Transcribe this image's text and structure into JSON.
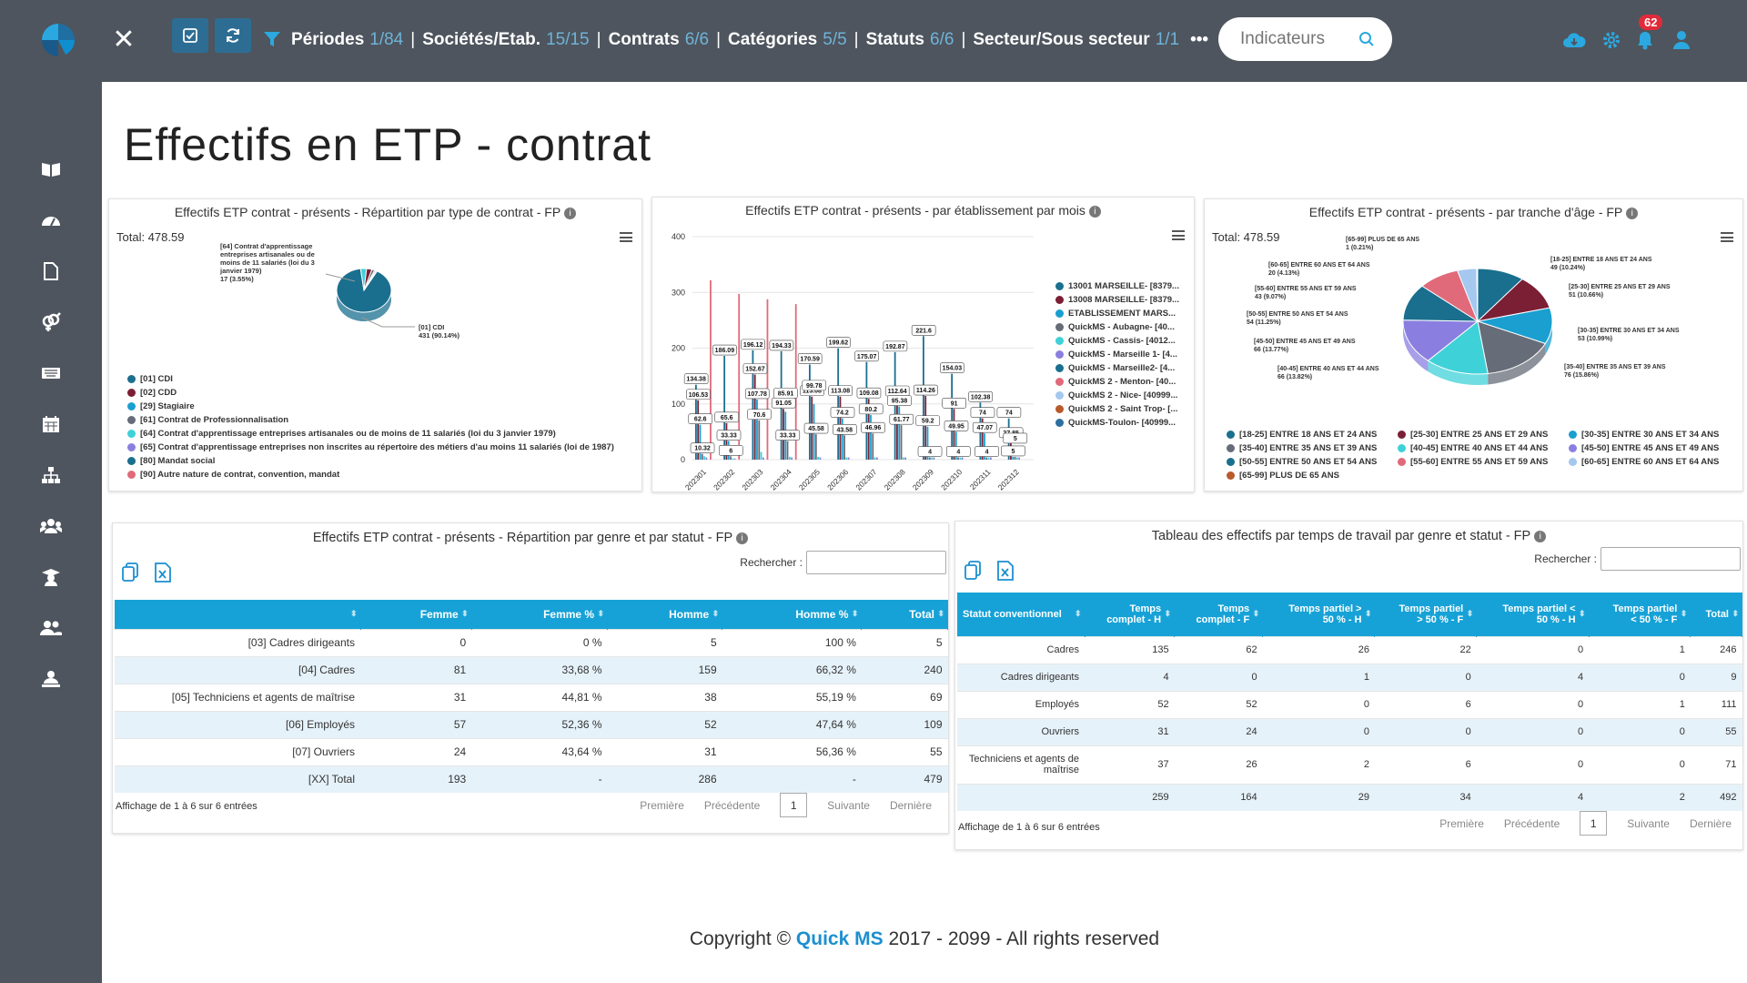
{
  "topbar": {
    "filters": [
      {
        "label": "Périodes",
        "count": "1/84"
      },
      {
        "label": "Sociétés/Etab.",
        "count": "15/15"
      },
      {
        "label": "Contrats",
        "count": "6/6"
      },
      {
        "label": "Catégories",
        "count": "5/5"
      },
      {
        "label": "Statuts",
        "count": "6/6"
      },
      {
        "label": "Secteur/Sous secteur",
        "count": "1/1"
      }
    ],
    "more": "•••",
    "search_placeholder": "Indicateurs",
    "notifications": "62"
  },
  "page_title": "Effectifs en ETP - contrat",
  "pie1": {
    "title": "Effectifs ETP contrat - présents - Répartition par type de contrat - FP",
    "total": "Total: 478.59",
    "labels": {
      "apprentissage": [
        "[64] Contrat d'apprentissage",
        "entreprises artisanales ou de",
        "moins de 11 salariés (loi du 3",
        "janvier 1979)",
        "17 (3.55%)"
      ],
      "cdi": [
        "[01] CDI",
        "431 (90.14%)"
      ]
    },
    "legend": [
      {
        "label": "[01] CDI",
        "color": "#1a6f8f"
      },
      {
        "label": "[02] CDD",
        "color": "#7b1f35"
      },
      {
        "label": "[29] Stagiaire",
        "color": "#1a9fd0"
      },
      {
        "label": "[61] Contrat de Professionnalisation",
        "color": "#666c78"
      },
      {
        "label": "[64] Contrat d'apprentissage entreprises artisanales ou de moins de 11 salariés (loi du 3 janvier 1979)",
        "color": "#3fd1d8"
      },
      {
        "label": "[65] Contrat d'apprentissage entreprises non inscrites au répertoire des métiers d'au moins 11 salariés (loi de 1987)",
        "color": "#8a7fe0"
      },
      {
        "label": "[80] Mandat social",
        "color": "#1a6f8f"
      },
      {
        "label": "[90] Autre nature de contrat, convention, mandat",
        "color": "#e06a7a"
      }
    ]
  },
  "chart_data": [
    {
      "type": "pie",
      "title": "Effectifs ETP contrat - présents - Répartition par type de contrat - FP",
      "slices": [
        {
          "label": "[01] CDI",
          "value": 431,
          "percent": 90.14,
          "color": "#1a6f8f"
        },
        {
          "label": "[64] Contrat d'apprentissage entreprises artisanales ou de moins de 11 salariés (loi du 3 janvier 1979)",
          "value": 17,
          "percent": 3.55,
          "color": "#3fd1d8"
        },
        {
          "label": "[02] CDD",
          "value": 15.2,
          "color": "#7b1f35"
        },
        {
          "label": "[61] Contrat de Professionnalisation",
          "value": 8,
          "color": "#666c78"
        },
        {
          "label": "[65]",
          "value": 4,
          "color": "#8a7fe0"
        },
        {
          "label": "[90]",
          "value": 3.39,
          "color": "#e06a7a"
        }
      ],
      "total": "Total: 478.59"
    },
    {
      "type": "bar",
      "title": "Effectifs ETP contrat - présents - par établissement par mois",
      "categories": [
        "202301",
        "202302",
        "202303",
        "202304",
        "202305",
        "202306",
        "202307",
        "202308",
        "202309",
        "202310",
        "202311",
        "202312"
      ],
      "ylim": [
        0,
        400
      ],
      "yticks": [
        0,
        100,
        200,
        300,
        400
      ],
      "series": [
        {
          "name": "13001 MARSEILLE- [8379...",
          "color": "#1a6f8f",
          "values": [
            134.38,
            186.09,
            196.12,
            194.33,
            170.59,
            199.62,
            175.07,
            192.87,
            221.6,
            154.03,
            102.38,
            74
          ]
        },
        {
          "name": "13008 MARSEILLE- [8379...",
          "color": "#7b1f35",
          "values": [
            106.53,
            65.6,
            152.67,
            91.05,
            113.08,
            113.08,
            109.08,
            112.64,
            114.26,
            91.0,
            74,
            37.85
          ]
        },
        {
          "name": "ETABLISSEMENT MARS...",
          "color": "#1a9fd0",
          "values": [
            62.6,
            33.33,
            107.78,
            85.91,
            99.78,
            74.2,
            80.2,
            95.38,
            59.2,
            49.95,
            47.07,
            5
          ]
        },
        {
          "name": "QuickMS - Aubagne- [40...",
          "color": "#666c78",
          "values": [
            10.32,
            6,
            70.6,
            33.33,
            45.58,
            43.58,
            46.96,
            61.77,
            4,
            4,
            4,
            5
          ]
        },
        {
          "name": "QuickMS - Cassis- [4012...",
          "color": "#3fd1d8",
          "values": [
            6,
            2,
            13.8,
            5,
            5,
            4,
            4,
            4,
            4,
            4,
            4,
            4
          ]
        },
        {
          "name": "QuickMS - Marseille 1- [4...",
          "color": "#8a7fe0",
          "values": [
            4,
            2,
            4,
            4,
            4,
            4,
            4,
            4,
            4,
            4,
            4,
            4
          ]
        },
        {
          "name": "QuickMS - Marseille2- [4...",
          "color": "#1a6f8f",
          "values": [
            0,
            0,
            0,
            0,
            0,
            0,
            0,
            0,
            0,
            0,
            0,
            0
          ]
        },
        {
          "name": "QuickMS 2 - Menton- [40...",
          "color": "#e06a7a",
          "values": [
            321.73,
            297.23,
            287.68,
            279.02,
            0,
            0,
            0,
            0,
            0,
            0,
            0,
            0
          ]
        },
        {
          "name": "QuickMS 2 - Nice- [40999...",
          "color": "#a5c8f0",
          "values": [
            0,
            0,
            0,
            0,
            0,
            0,
            0,
            0,
            0,
            0,
            0,
            0
          ]
        },
        {
          "name": "QuickMS 2 - Saint Trop- [...",
          "color": "#b85a2a",
          "values": [
            0,
            0,
            0,
            0,
            0,
            0,
            0,
            0,
            0,
            0,
            0,
            0
          ]
        },
        {
          "name": "QuickMS-Toulon- [40999...",
          "color": "#2c6fa0",
          "values": [
            0,
            0,
            0,
            0,
            0,
            0,
            0,
            0,
            0,
            0,
            0,
            0
          ]
        }
      ],
      "data_labels": [
        "321.73",
        "297.23",
        "287.68",
        "279.02",
        "186.09",
        "196.12",
        "194.33",
        "199.62",
        "175.07",
        "192.87",
        "221.60",
        "154.03",
        "134.38",
        "152.67",
        "170.59",
        "113.08",
        "109.08",
        "112.64",
        "114.26",
        "102.38",
        "106.53",
        "107.78",
        "85.91",
        "99.78",
        "74.20",
        "80.20",
        "95.38",
        "59.20",
        "74",
        "62.60",
        "65.60",
        "70.60",
        "43.58",
        "45.58",
        "46.96",
        "61.77",
        "49.95",
        "47.07",
        "37.85",
        "10.32",
        "33.33",
        "33.33",
        "13.80",
        "6",
        "2",
        "5",
        "4",
        "5"
      ]
    },
    {
      "type": "pie",
      "title": "Effectifs ETP contrat - présents - par tranche d'âge - FP",
      "total": "Total: 478.59",
      "slices": [
        {
          "label": "[18-25] ENTRE 18 ANS ET 24 ANS",
          "value": 49,
          "percent": 10.24,
          "color": "#1a6f8f"
        },
        {
          "label": "[25-30] ENTRE 25 ANS ET 29 ANS",
          "value": 51,
          "percent": 10.66,
          "color": "#7b1f35"
        },
        {
          "label": "[30-35] ENTRE 30 ANS ET 34 ANS",
          "value": 53,
          "percent": 10.99,
          "color": "#1a9fd0"
        },
        {
          "label": "[35-40] ENTRE 35 ANS ET 39 ANS",
          "value": 76,
          "percent": 15.86,
          "color": "#666c78"
        },
        {
          "label": "[40-45] ENTRE 40 ANS ET 44 ANS",
          "value": 66,
          "percent": 13.82,
          "color": "#3fd1d8"
        },
        {
          "label": "[45-50] ENTRE 45 ANS ET 49 ANS",
          "value": 66,
          "percent": 13.77,
          "color": "#8a7fe0"
        },
        {
          "label": "[50-55] ENTRE 50 ANS ET 54 ANS",
          "value": 54,
          "percent": 11.25,
          "color": "#1a6f8f"
        },
        {
          "label": "[55-60] ENTRE 55 ANS ET 59 ANS",
          "value": 43,
          "percent": 9.07,
          "color": "#e06a7a"
        },
        {
          "label": "[60-65] ENTRE 60 ANS ET 64 ANS",
          "value": 20,
          "percent": 4.13,
          "color": "#a5c8f0"
        },
        {
          "label": "[65-99] PLUS DE 65 ANS",
          "value": 1,
          "percent": 0.21,
          "color": "#b85a2a"
        }
      ]
    }
  ],
  "bar": {
    "title": "Effectifs ETP contrat - présents - par établissement par mois"
  },
  "pie2": {
    "title": "Effectifs ETP contrat - présents - par tranche d'âge - FP",
    "total": "Total: 478.59",
    "slice_labels": [
      [
        "[65-99] PLUS DE 65 ANS",
        "1 (0.21%)"
      ],
      [
        "[60-65] ENTRE 60 ANS ET 64 ANS",
        "20 (4.13%)"
      ],
      [
        "[55-60] ENTRE 55 ANS ET 59 ANS",
        "43 (9.07%)"
      ],
      [
        "[50-55] ENTRE 50 ANS ET 54 ANS",
        "54 (11.25%)"
      ],
      [
        "[45-50] ENTRE 45 ANS ET 49 ANS",
        "66 (13.77%)"
      ],
      [
        "[40-45] ENTRE 40 ANS ET 44 ANS",
        "66 (13.82%)"
      ],
      [
        "[18-25] ENTRE 18 ANS ET 24 ANS",
        "49 (10.24%)"
      ],
      [
        "[25-30] ENTRE 25 ANS ET 29 ANS",
        "51 (10.66%)"
      ],
      [
        "[30-35] ENTRE 30 ANS ET 34 ANS",
        "53 (10.99%)"
      ],
      [
        "[35-40] ENTRE 35 ANS ET 39 ANS",
        "76 (15.86%)"
      ]
    ]
  },
  "table1": {
    "title": "Effectifs ETP contrat - présents - Répartition par genre et par statut - FP",
    "search_label": "Rechercher :",
    "columns": [
      "",
      "Femme",
      "Femme %",
      "Homme",
      "Homme %",
      "Total"
    ],
    "rows": [
      [
        "[03] Cadres dirigeants",
        "0",
        "0 %",
        "5",
        "100 %",
        "5"
      ],
      [
        "[04] Cadres",
        "81",
        "33,68 %",
        "159",
        "66,32 %",
        "240"
      ],
      [
        "[05] Techniciens et agents de maîtrise",
        "31",
        "44,81 %",
        "38",
        "55,19 %",
        "69"
      ],
      [
        "[06] Employés",
        "57",
        "52,36 %",
        "52",
        "47,64 %",
        "109"
      ],
      [
        "[07] Ouvriers",
        "24",
        "43,64 %",
        "31",
        "56,36 %",
        "55"
      ],
      [
        "[XX] Total",
        "193",
        "-",
        "286",
        "-",
        "479"
      ]
    ],
    "info": "Affichage de 1 à 6 sur 6 entrées",
    "pager": {
      "first": "Première",
      "prev": "Précédente",
      "page": "1",
      "next": "Suivante",
      "last": "Dernière"
    }
  },
  "table2": {
    "title": "Tableau des effectifs par temps de travail par genre et statut - FP",
    "search_label": "Rechercher :",
    "columns": [
      [
        "Statut conventionnel"
      ],
      [
        "Temps",
        "complet - H"
      ],
      [
        "Temps",
        "complet - F"
      ],
      [
        "Temps partiel >",
        "50 % - H"
      ],
      [
        "Temps partiel",
        "> 50 % - F"
      ],
      [
        "Temps partiel <",
        "50 % - H"
      ],
      [
        "Temps partiel",
        "< 50 % - F"
      ],
      [
        "Total"
      ]
    ],
    "rows": [
      [
        [
          "Cadres"
        ],
        "135",
        "62",
        "26",
        "22",
        "0",
        "1",
        "246"
      ],
      [
        [
          "Cadres dirigeants"
        ],
        "4",
        "0",
        "1",
        "0",
        "4",
        "0",
        "9"
      ],
      [
        [
          "Employés"
        ],
        "52",
        "52",
        "0",
        "6",
        "0",
        "1",
        "111"
      ],
      [
        [
          "Ouvriers"
        ],
        "31",
        "24",
        "0",
        "0",
        "0",
        "0",
        "55"
      ],
      [
        [
          "Techniciens et agents de",
          "maîtrise"
        ],
        "37",
        "26",
        "2",
        "6",
        "0",
        "0",
        "71"
      ],
      [
        [
          ""
        ],
        "259",
        "164",
        "29",
        "34",
        "4",
        "2",
        "492"
      ]
    ],
    "info": "Affichage de 1 à 6 sur 6 entrées",
    "pager": {
      "first": "Première",
      "prev": "Précédente",
      "page": "1",
      "next": "Suivante",
      "last": "Dernière"
    }
  },
  "footer": {
    "prefix": "Copyright © ",
    "brand": "Quick MS",
    "suffix": " 2017 - 2099 - All rights reserved"
  }
}
